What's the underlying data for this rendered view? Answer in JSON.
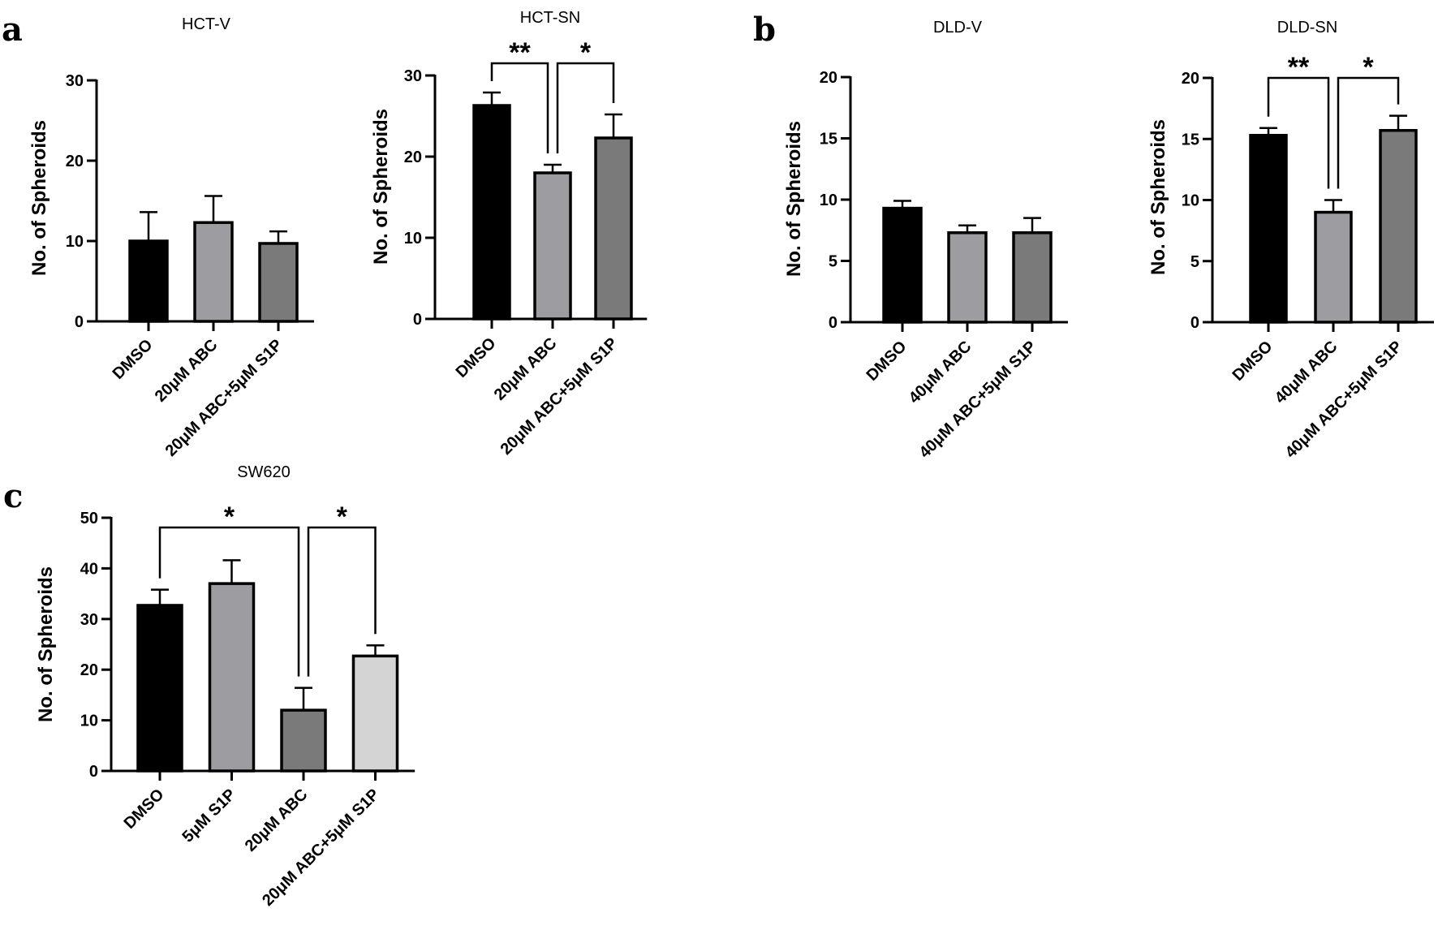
{
  "panel_letters": [
    "a",
    "b",
    "c"
  ],
  "chart_data": [
    {
      "type": "bar",
      "panel": "a",
      "title": "HCT-V",
      "ylabel": "No. of Spheroids",
      "xlabel": "",
      "ylim": [
        0,
        30
      ],
      "yticks": [
        0,
        10,
        20,
        30
      ],
      "categories": [
        "DMSO",
        "20μM ABC",
        "20μM ABC+5μM S1P"
      ],
      "values": [
        10,
        12.3,
        9.7
      ],
      "errors": [
        3.6,
        3.3,
        1.5
      ],
      "colors": [
        "#000000",
        "#9d9da1",
        "#7a7a7a"
      ],
      "significance": []
    },
    {
      "type": "bar",
      "panel": "a",
      "title": "HCT-SN",
      "ylabel": "No. of Spheroids",
      "xlabel": "",
      "ylim": [
        0,
        30
      ],
      "yticks": [
        0,
        10,
        20,
        30
      ],
      "categories": [
        "DMSO",
        "20μM ABC",
        "20μM ABC+5μM S1P"
      ],
      "values": [
        26.3,
        18,
        22.3
      ],
      "errors": [
        1.6,
        1.0,
        2.9
      ],
      "colors": [
        "#000000",
        "#9d9da1",
        "#7a7a7a"
      ],
      "significance": [
        {
          "from": 0,
          "to": 1,
          "label": "**"
        },
        {
          "from": 1,
          "to": 2,
          "label": "*"
        }
      ]
    },
    {
      "type": "bar",
      "panel": "b",
      "title": "DLD-V",
      "ylabel": "No. of Spheroids",
      "xlabel": "",
      "ylim": [
        0,
        20
      ],
      "yticks": [
        0,
        5,
        10,
        15,
        20
      ],
      "categories": [
        "DMSO",
        "40μM ABC",
        "40μM ABC+5μM S1P"
      ],
      "values": [
        9.3,
        7.3,
        7.3
      ],
      "errors": [
        0.6,
        0.6,
        1.2
      ],
      "colors": [
        "#000000",
        "#9d9da1",
        "#7a7a7a"
      ],
      "significance": []
    },
    {
      "type": "bar",
      "panel": "b",
      "title": "DLD-SN",
      "ylabel": "No. of Spheroids",
      "xlabel": "",
      "ylim": [
        0,
        20
      ],
      "yticks": [
        0,
        5,
        10,
        15,
        20
      ],
      "categories": [
        "DMSO",
        "40μM ABC",
        "40μM ABC+5μM S1P"
      ],
      "values": [
        15.3,
        9,
        15.7
      ],
      "errors": [
        0.6,
        1.0,
        1.2
      ],
      "colors": [
        "#000000",
        "#9d9da1",
        "#7a7a7a"
      ],
      "significance": [
        {
          "from": 0,
          "to": 1,
          "label": "**"
        },
        {
          "from": 1,
          "to": 2,
          "label": "*"
        }
      ]
    },
    {
      "type": "bar",
      "panel": "c",
      "title": "SW620",
      "ylabel": "No. of Spheroids",
      "xlabel": "",
      "ylim": [
        0,
        50
      ],
      "yticks": [
        0,
        10,
        20,
        30,
        40,
        50
      ],
      "categories": [
        "DMSO",
        "5μM S1P",
        "20μM ABC",
        "20μM ABC+5μM S1P"
      ],
      "values": [
        32.7,
        37,
        12,
        22.7
      ],
      "errors": [
        3.1,
        4.6,
        4.4,
        2.1
      ],
      "colors": [
        "#000000",
        "#9d9da1",
        "#7a7a7a",
        "#d4d4d4"
      ],
      "significance": [
        {
          "from": 0,
          "to": 2,
          "label": "*"
        },
        {
          "from": 2,
          "to": 3,
          "label": "*"
        }
      ]
    }
  ]
}
